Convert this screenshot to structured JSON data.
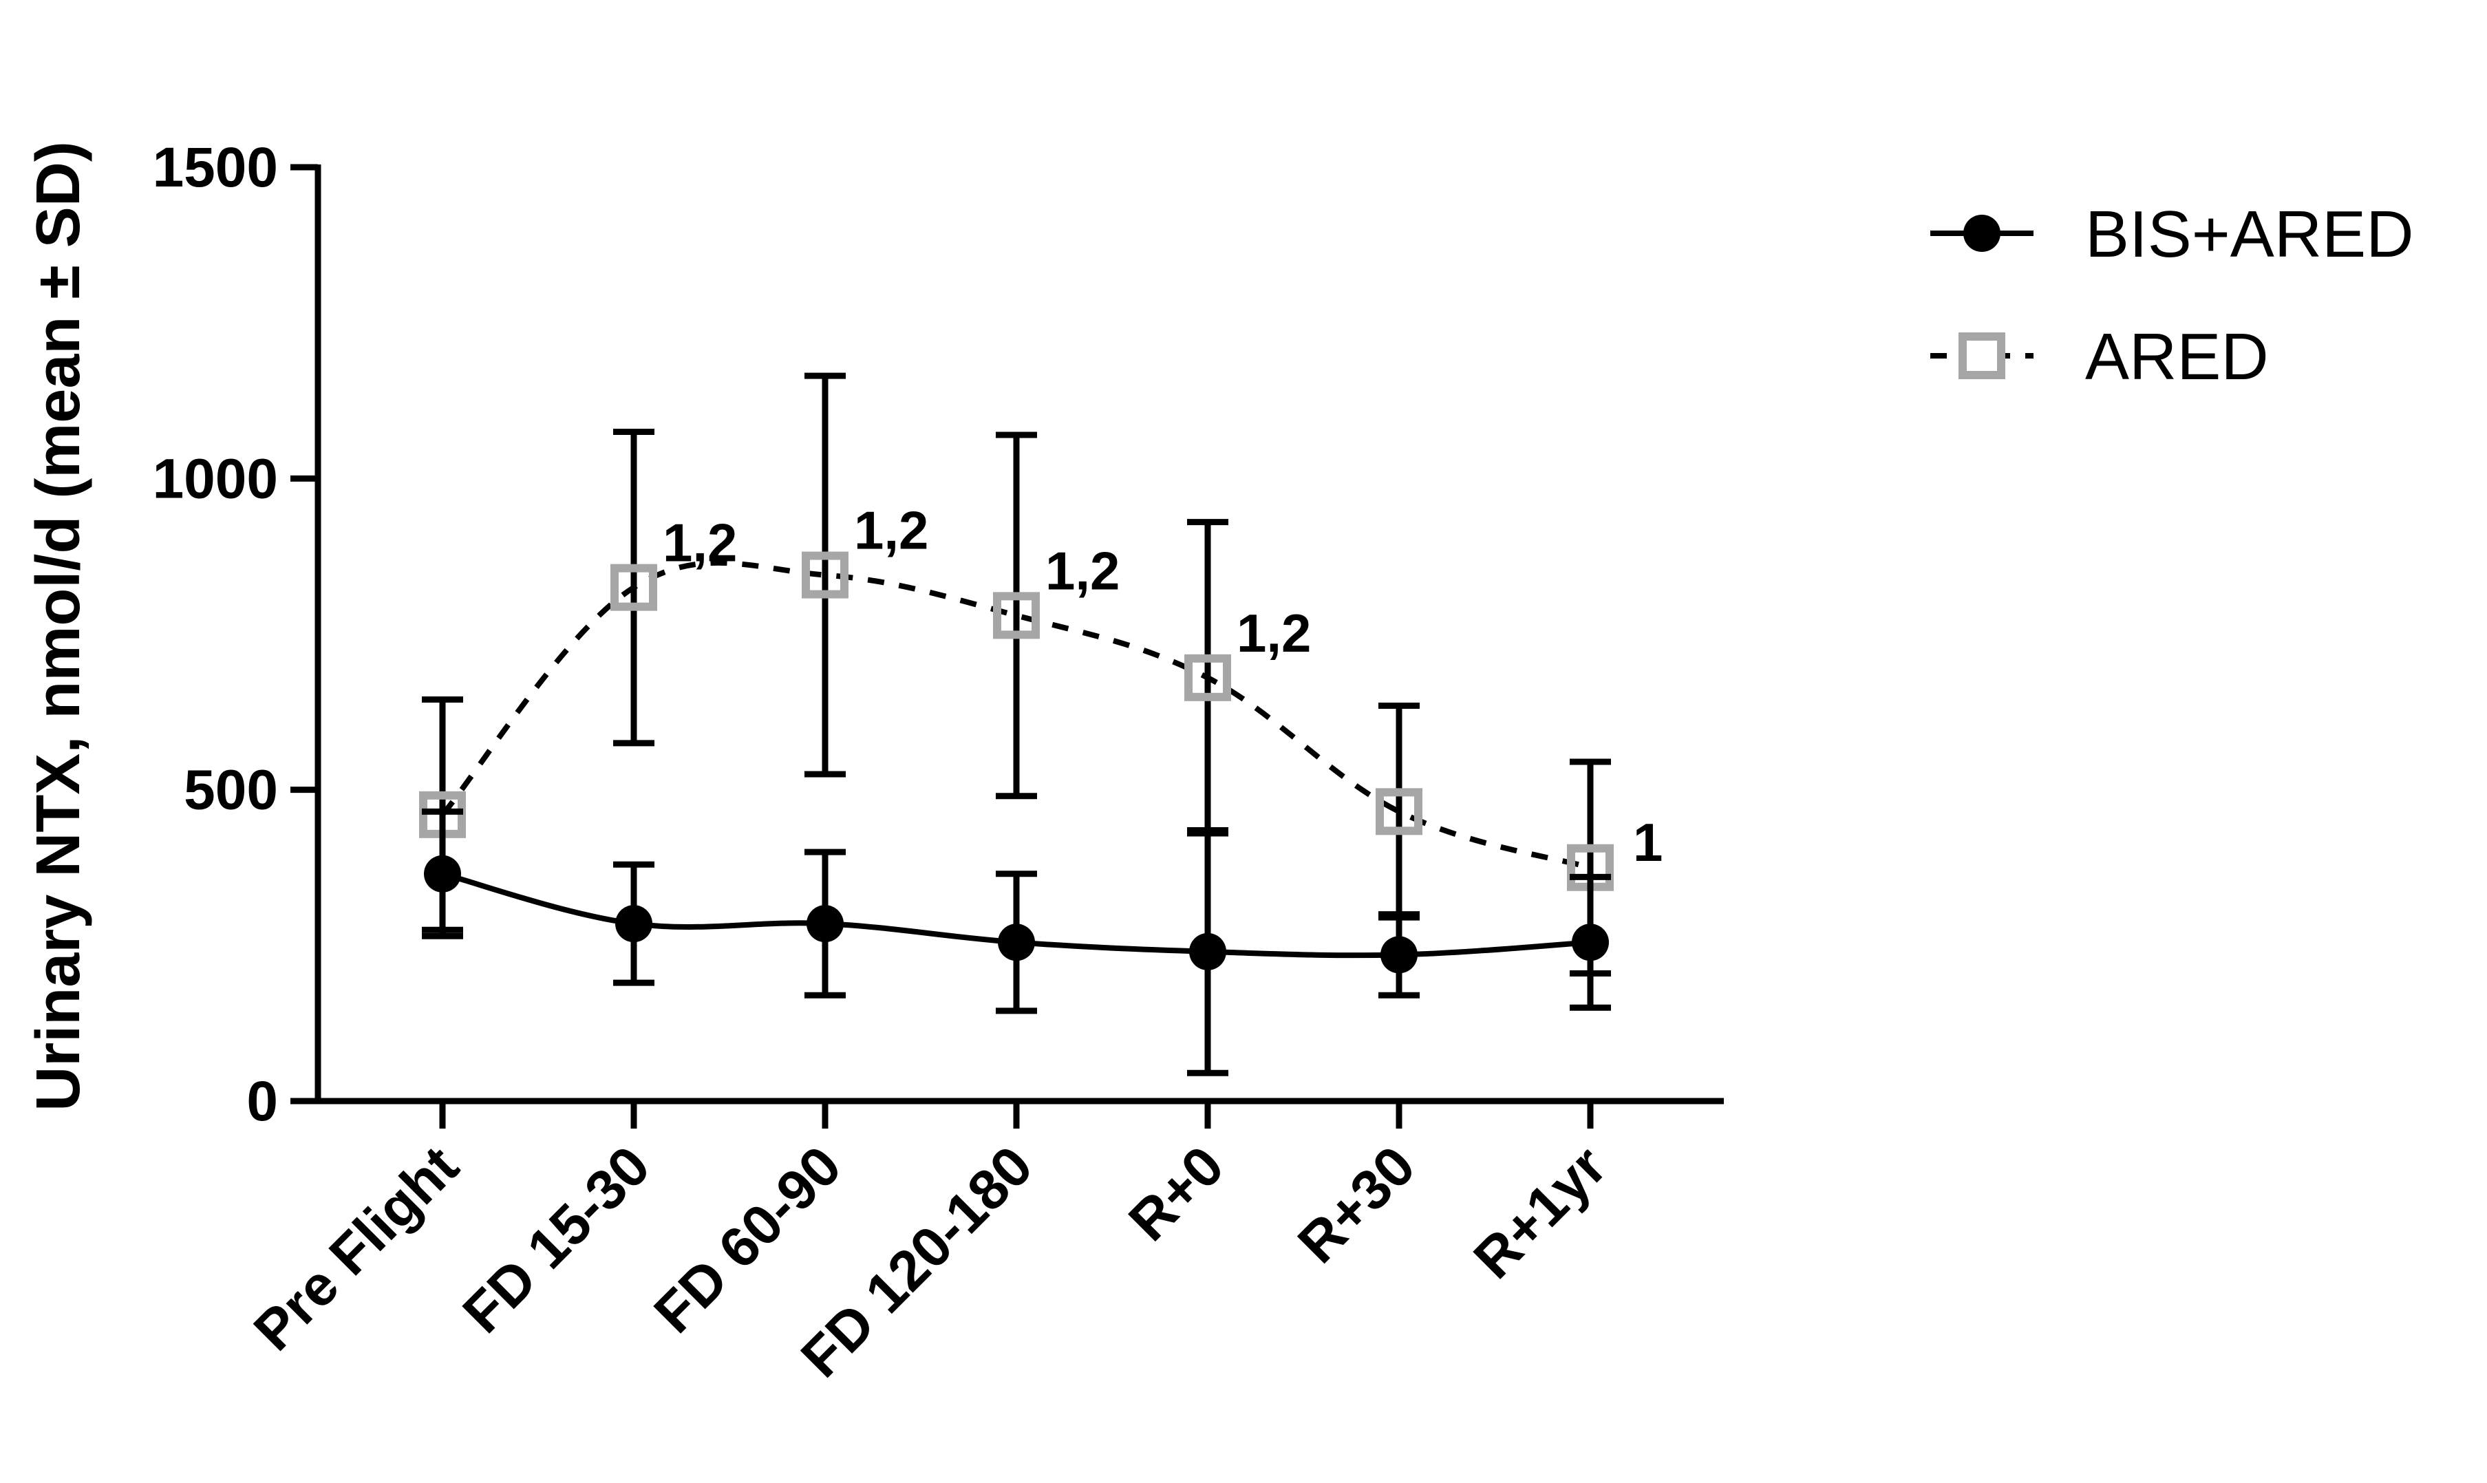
{
  "chart_data": {
    "type": "line",
    "title": "",
    "xlabel": "",
    "ylabel": "Urinary NTX, nmol/d (mean ± SD)",
    "ylim": [
      0,
      1500
    ],
    "yticks": [
      "0",
      "500",
      "1000",
      "1500"
    ],
    "ytick_values": [
      0,
      500,
      1000,
      1500
    ],
    "grid": false,
    "legend_position": "top-right",
    "categories": [
      "Pre Flight",
      "FD 15-30",
      "FD 60-90",
      "FD 120-180",
      "R+0",
      "R+30",
      "R+1yr"
    ],
    "series": [
      {
        "name": "BIS+ARED",
        "line_style": "solid",
        "marker": "filled-circle",
        "color": "#000000",
        "values": [
          365,
          285,
          285,
          255,
          240,
          235,
          255
        ],
        "sd": [
          100,
          95,
          115,
          110,
          195,
          65,
          105
        ],
        "annotations": [
          "",
          "",
          "",
          "",
          "",
          "",
          ""
        ]
      },
      {
        "name": "ARED",
        "line_style": "dashed",
        "marker": "open-square",
        "color": "#a6a6a6",
        "values": [
          460,
          825,
          845,
          780,
          680,
          465,
          375
        ],
        "sd": [
          185,
          250,
          320,
          290,
          250,
          170,
          170
        ],
        "annotations": [
          "",
          "1,2",
          "1,2",
          "1,2",
          "1,2",
          "",
          "1"
        ]
      }
    ]
  }
}
